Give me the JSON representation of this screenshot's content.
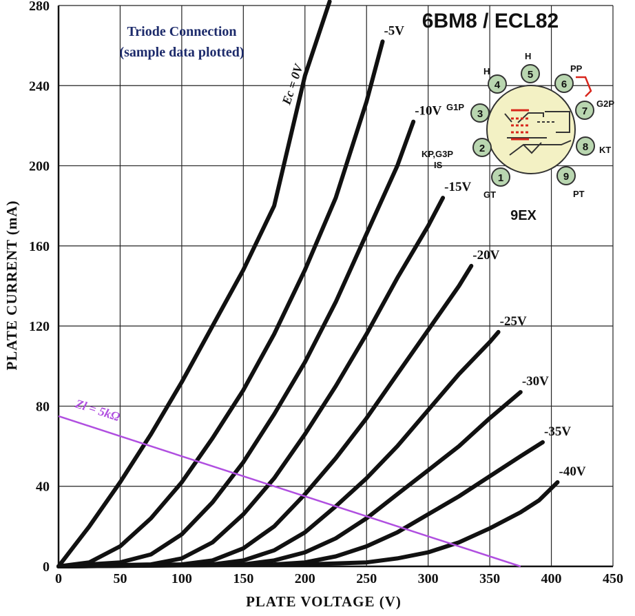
{
  "chart_data": {
    "type": "line",
    "title": "6BM8 / ECL82",
    "subtitle_line1": "Triode Connection",
    "subtitle_line2": "(sample data plotted)",
    "xlabel": "PLATE VOLTAGE (V)",
    "ylabel": "PLATE CURRENT (mA)",
    "xlim": [
      0,
      450
    ],
    "ylim": [
      0,
      280
    ],
    "xticks": [
      0,
      50,
      100,
      150,
      200,
      250,
      300,
      350,
      400,
      450
    ],
    "yticks": [
      0,
      40,
      80,
      120,
      160,
      200,
      240,
      280
    ],
    "grid": true,
    "series": [
      {
        "name": "Ec = 0V",
        "label_v": 0,
        "color": "#111111",
        "points": [
          [
            0,
            0
          ],
          [
            10,
            8
          ],
          [
            25,
            20
          ],
          [
            50,
            42
          ],
          [
            75,
            66
          ],
          [
            100,
            92
          ],
          [
            125,
            120
          ],
          [
            150,
            148
          ],
          [
            175,
            180
          ],
          [
            200,
            245
          ],
          [
            220,
            282
          ]
        ]
      },
      {
        "name": "-5V",
        "label_v": -5,
        "color": "#111111",
        "points": [
          [
            0,
            0
          ],
          [
            25,
            2
          ],
          [
            50,
            10
          ],
          [
            75,
            24
          ],
          [
            100,
            42
          ],
          [
            125,
            64
          ],
          [
            150,
            88
          ],
          [
            175,
            116
          ],
          [
            200,
            148
          ],
          [
            225,
            184
          ],
          [
            250,
            232
          ],
          [
            263,
            262
          ]
        ]
      },
      {
        "name": "-10V",
        "label_v": -10,
        "color": "#111111",
        "points": [
          [
            0,
            0
          ],
          [
            50,
            2
          ],
          [
            75,
            6
          ],
          [
            100,
            16
          ],
          [
            125,
            32
          ],
          [
            150,
            52
          ],
          [
            175,
            76
          ],
          [
            200,
            102
          ],
          [
            225,
            132
          ],
          [
            250,
            166
          ],
          [
            275,
            200
          ],
          [
            288,
            222
          ]
        ]
      },
      {
        "name": "-15V",
        "label_v": -15,
        "color": "#111111",
        "points": [
          [
            0,
            0
          ],
          [
            75,
            1
          ],
          [
            100,
            4
          ],
          [
            125,
            12
          ],
          [
            150,
            26
          ],
          [
            175,
            44
          ],
          [
            200,
            66
          ],
          [
            225,
            90
          ],
          [
            250,
            116
          ],
          [
            275,
            144
          ],
          [
            300,
            170
          ],
          [
            312,
            184
          ]
        ]
      },
      {
        "name": "-20V",
        "label_v": -20,
        "color": "#111111",
        "points": [
          [
            0,
            0
          ],
          [
            100,
            1
          ],
          [
            125,
            3
          ],
          [
            150,
            9
          ],
          [
            175,
            20
          ],
          [
            200,
            36
          ],
          [
            225,
            54
          ],
          [
            250,
            74
          ],
          [
            275,
            96
          ],
          [
            300,
            118
          ],
          [
            325,
            140
          ],
          [
            335,
            150
          ]
        ]
      },
      {
        "name": "-25V",
        "label_v": -25,
        "color": "#111111",
        "points": [
          [
            0,
            0
          ],
          [
            125,
            1
          ],
          [
            150,
            3
          ],
          [
            175,
            8
          ],
          [
            200,
            17
          ],
          [
            225,
            30
          ],
          [
            250,
            44
          ],
          [
            275,
            60
          ],
          [
            300,
            78
          ],
          [
            325,
            96
          ],
          [
            350,
            112
          ],
          [
            357,
            117
          ]
        ]
      },
      {
        "name": "-30V",
        "label_v": -30,
        "color": "#111111",
        "points": [
          [
            0,
            0
          ],
          [
            150,
            1
          ],
          [
            175,
            3
          ],
          [
            200,
            7
          ],
          [
            225,
            14
          ],
          [
            250,
            24
          ],
          [
            275,
            36
          ],
          [
            300,
            48
          ],
          [
            325,
            60
          ],
          [
            350,
            74
          ],
          [
            375,
            87
          ]
        ]
      },
      {
        "name": "-35V",
        "label_v": -35,
        "color": "#111111",
        "points": [
          [
            0,
            0
          ],
          [
            175,
            1
          ],
          [
            200,
            2
          ],
          [
            225,
            5
          ],
          [
            250,
            10
          ],
          [
            275,
            17
          ],
          [
            300,
            26
          ],
          [
            325,
            35
          ],
          [
            350,
            45
          ],
          [
            375,
            55
          ],
          [
            393,
            62
          ]
        ]
      },
      {
        "name": "-40V",
        "label_v": -40,
        "color": "#111111",
        "points": [
          [
            0,
            0
          ],
          [
            200,
            1
          ],
          [
            250,
            2
          ],
          [
            275,
            4
          ],
          [
            300,
            7
          ],
          [
            325,
            12
          ],
          [
            350,
            19
          ],
          [
            375,
            27
          ],
          [
            390,
            33
          ],
          [
            405,
            42
          ]
        ]
      }
    ],
    "load_line": {
      "label": "Zl = 5kΩ",
      "color": "#b04fe0",
      "points": [
        [
          0,
          75
        ],
        [
          375,
          0
        ]
      ]
    }
  },
  "base_diagram": {
    "label": "9EX",
    "pins": [
      {
        "number": "1",
        "label": "GT"
      },
      {
        "number": "2",
        "label": "KP,G3P IS"
      },
      {
        "number": "3",
        "label": "G1P"
      },
      {
        "number": "4",
        "label": "H"
      },
      {
        "number": "5",
        "label": "H"
      },
      {
        "number": "6",
        "label": "PP"
      },
      {
        "number": "7",
        "label": "G2P"
      },
      {
        "number": "8",
        "label": "KT"
      },
      {
        "number": "9",
        "label": "PT"
      }
    ]
  }
}
